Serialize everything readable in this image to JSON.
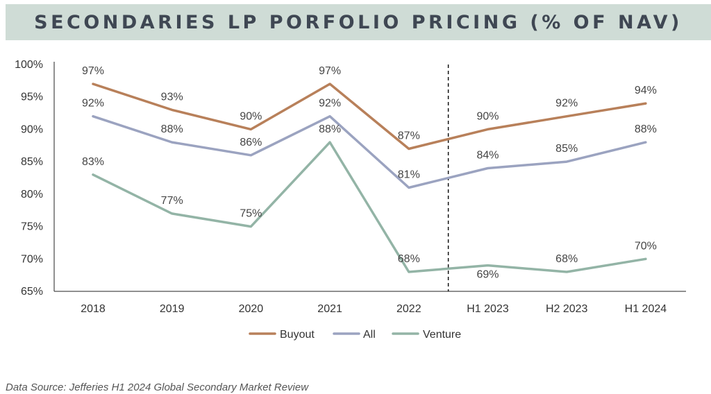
{
  "title": "SECONDARIES LP PORFOLIO PRICING (% OF NAV)",
  "source": "Data Source:  Jefferies H1 2024 Global Secondary Market Review",
  "chart_data": {
    "type": "line",
    "categories": [
      "2018",
      "2019",
      "2020",
      "2021",
      "2022",
      "H1 2023",
      "H2 2023",
      "H1 2024"
    ],
    "series": [
      {
        "name": "Buyout",
        "values": [
          97,
          93,
          90,
          97,
          87,
          90,
          92,
          94
        ],
        "color": "#b8805a"
      },
      {
        "name": "All",
        "values": [
          92,
          88,
          86,
          92,
          81,
          84,
          85,
          88
        ],
        "color": "#9ba3c0"
      },
      {
        "name": "Venture",
        "values": [
          83,
          77,
          75,
          88,
          68,
          69,
          68,
          70
        ],
        "color": "#93b4a6"
      }
    ],
    "value_labels": {
      "Buyout": [
        "97%",
        "93%",
        "90%",
        "97%",
        "87%",
        "90%",
        "92%",
        "94%"
      ],
      "All": [
        "92%",
        "88%",
        "86%",
        "92%",
        "81%",
        "84%",
        "85%",
        "88%"
      ],
      "Venture": [
        "83%",
        "77%",
        "75%",
        "88%",
        "68%",
        "69%",
        "68%",
        "70%"
      ]
    },
    "yticks": [
      "65%",
      "70%",
      "75%",
      "80%",
      "85%",
      "90%",
      "95%",
      "100%"
    ],
    "ylim": [
      65,
      100
    ],
    "divider_between": [
      "2022",
      "H1 2023"
    ],
    "legend_position": "bottom-center",
    "grid": false
  }
}
